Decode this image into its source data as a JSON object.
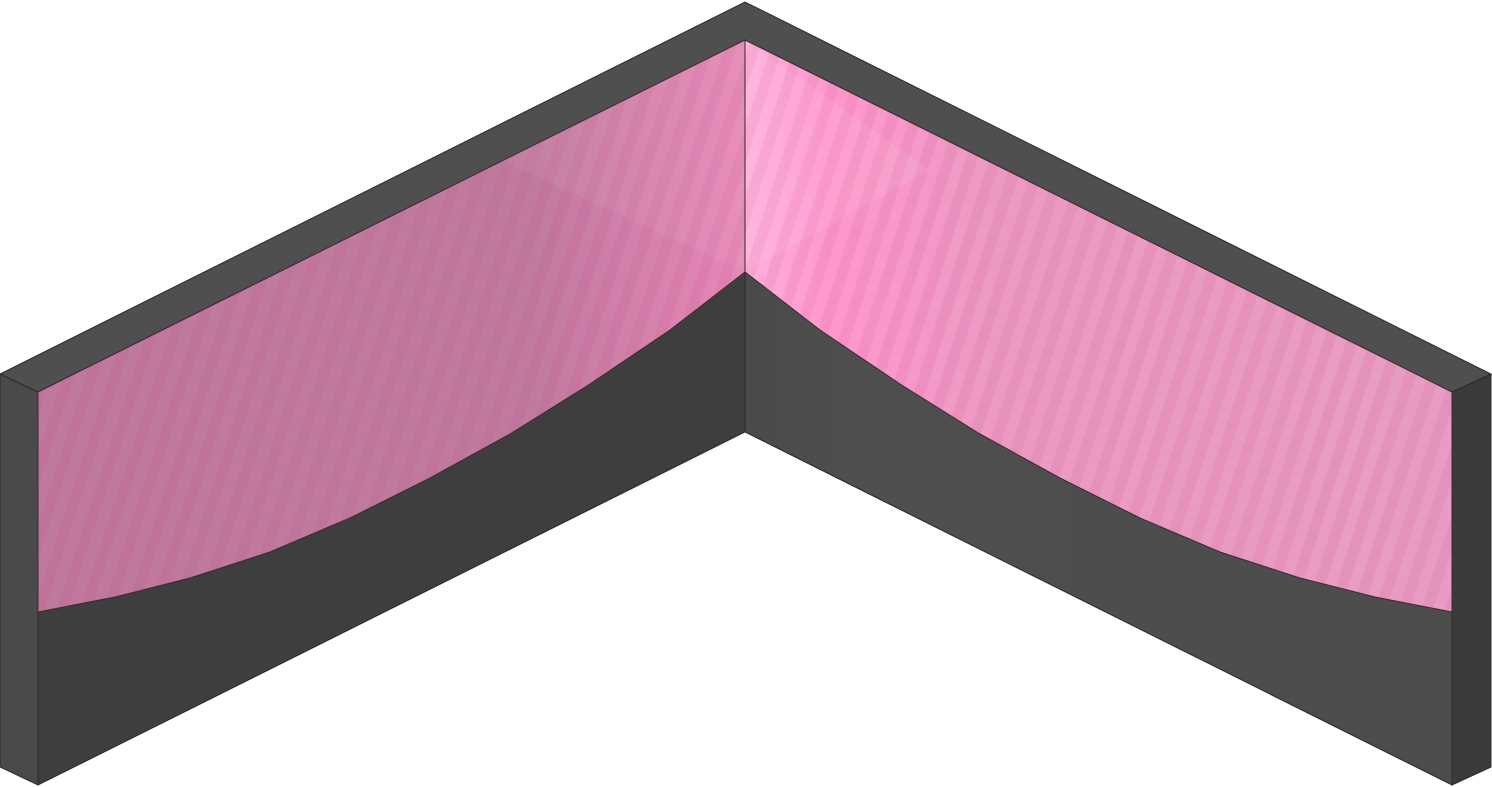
{
  "scene": {
    "asset": "isometric-corner-wall",
    "description_visible_text": "",
    "colors": {
      "wall_top": "#4f4f4f",
      "wall_outer_left": "#4a4a4a",
      "wall_outer_right": "#3a3a3a",
      "wall_inner_left": "#3e3e3e",
      "wall_inner_right_light": "#555555",
      "wall_inner_right_dark": "#4a4a4a",
      "glass_left_light": "#c48aa8",
      "glass_left_dark": "#b56e94",
      "glass_right_light": "#ffaad6",
      "glass_right_mid": "#f090c0",
      "glass_right_dark": "#e892bd",
      "stripe": "#d04888",
      "edge": "#2a2a2a"
    },
    "icons": {
      "wall_piece": "wall-corner-icon",
      "glass_panel": "glass-window-icon"
    }
  }
}
